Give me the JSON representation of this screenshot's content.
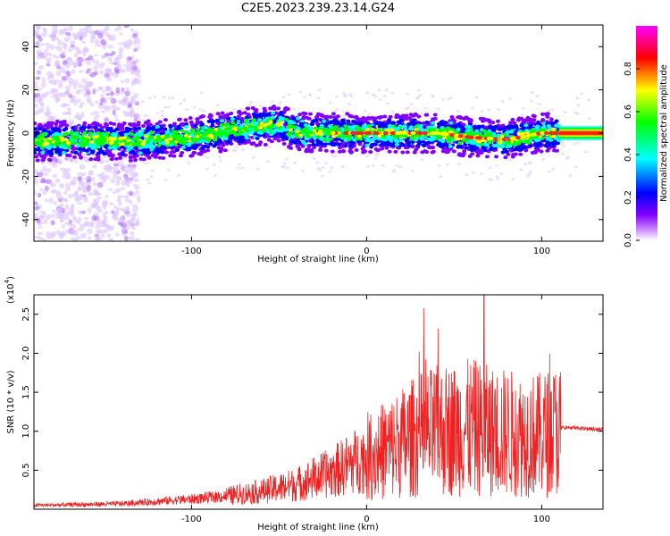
{
  "title": "C2E5.2023.239.23.14.G24",
  "chart_data": [
    {
      "type": "heatmap",
      "xlabel": "Height of straight line (km)",
      "ylabel": "Frequency (Hz)",
      "xlim": [
        -190,
        135
      ],
      "ylim": [
        -50,
        50
      ],
      "x_ticks": [
        -100,
        0,
        100
      ],
      "y_ticks": [
        -40,
        -20,
        0,
        20,
        40
      ],
      "colorbar": {
        "label": "Normalized spectral amplitude",
        "range": [
          0,
          1
        ],
        "ticks": [
          0.0,
          0.2,
          0.4,
          0.6,
          0.8
        ],
        "colors": [
          "#ffffff",
          "#8000ff",
          "#0000ff",
          "#00ffff",
          "#00ff00",
          "#ffff00",
          "#ff0000",
          "#ff00ff"
        ]
      },
      "ridge": {
        "x": [
          -190,
          -160,
          -140,
          -120,
          -100,
          -80,
          -65,
          -50,
          -40,
          -30,
          -20,
          0,
          10,
          20,
          40,
          60,
          80,
          100,
          110,
          135
        ],
        "y": [
          -4,
          -3,
          -4,
          -3,
          -2,
          1,
          3,
          4,
          1,
          0,
          0,
          0,
          0,
          0,
          0,
          -2,
          -3,
          0,
          0,
          0
        ]
      }
    },
    {
      "type": "line",
      "xlabel": "Height of straight line (km)",
      "ylabel": "SNR (10 * v/v)",
      "ylabel_unit": "(x10",
      "ylabel_exp": "4",
      "xlim": [
        -190,
        135
      ],
      "ylim": [
        0,
        2.75
      ],
      "x_ticks": [
        -100,
        0,
        100
      ],
      "y_ticks": [
        0.5,
        1.0,
        1.5,
        2.0,
        2.5
      ],
      "line_color": "#ff2222",
      "envelope": {
        "x": [
          -190,
          -160,
          -140,
          -120,
          -100,
          -80,
          -60,
          -40,
          -30,
          -20,
          -10,
          0,
          10,
          20,
          30,
          40,
          50,
          60,
          70,
          80,
          90,
          100,
          110,
          112,
          135
        ],
        "y": [
          0.05,
          0.06,
          0.07,
          0.1,
          0.13,
          0.17,
          0.23,
          0.32,
          0.4,
          0.47,
          0.58,
          0.67,
          0.75,
          0.85,
          0.95,
          1.0,
          1.02,
          1.05,
          1.0,
          0.98,
          0.95,
          0.95,
          1.02,
          1.05,
          1.02
        ]
      }
    }
  ]
}
